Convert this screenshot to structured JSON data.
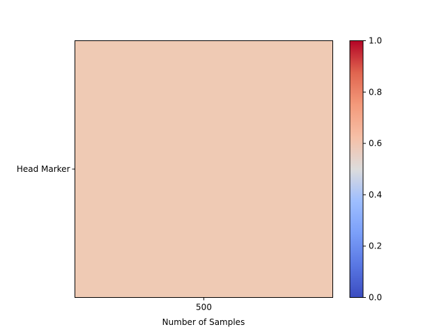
{
  "chart_data": {
    "type": "heatmap",
    "x_categories": [
      "500"
    ],
    "y_categories": [
      "Head Marker"
    ],
    "values": [
      [
        0.63
      ]
    ],
    "xlabel": "Number of Samples",
    "ylabel": "",
    "title": "",
    "colorbar": {
      "min": 0.0,
      "max": 1.0,
      "ticks": [
        "0.0",
        "0.2",
        "0.4",
        "0.6",
        "0.8",
        "1.0"
      ],
      "colormap": "coolwarm"
    },
    "cell_color": "#efcab4",
    "grid": false
  }
}
